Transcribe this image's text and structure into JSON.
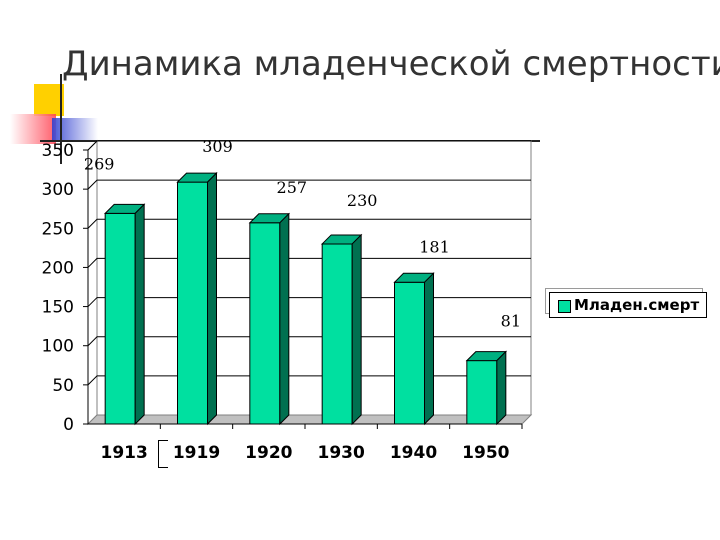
{
  "slide": {
    "title": "Динамика младенческой смертности"
  },
  "colors": {
    "bar_front": "#00e0a0",
    "bar_top": "#00b080",
    "bar_side": "#007050",
    "deco_yellow": "#ffd000",
    "deco_red": "#ff4050",
    "deco_blue": "#3040d0"
  },
  "chart_data": {
    "type": "bar",
    "title": "",
    "categories": [
      "1913",
      "1919",
      "1920",
      "1930",
      "1940",
      "1950"
    ],
    "values": [
      269,
      309,
      257,
      230,
      181,
      81
    ],
    "data_labels": [
      "269",
      "309",
      "257",
      "230",
      "181",
      "81"
    ],
    "y_ticks": [
      "0",
      "50",
      "100",
      "150",
      "200",
      "250",
      "300",
      "350"
    ],
    "ylim": [
      0,
      350
    ],
    "grid": true,
    "legend_position": "right",
    "series": [
      {
        "name": "Младен.смерт",
        "values": [
          269,
          309,
          257,
          230,
          181,
          81
        ]
      }
    ]
  }
}
